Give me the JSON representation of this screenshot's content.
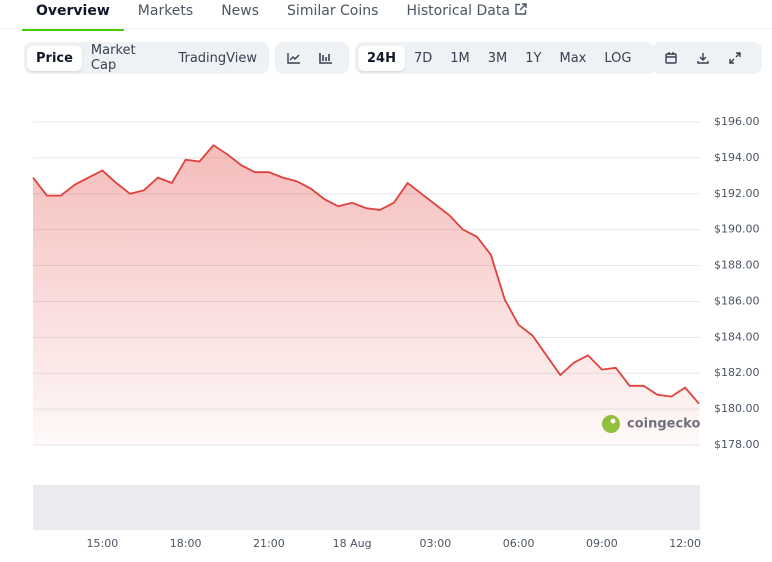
{
  "tabs": [
    "Overview",
    "Markets",
    "News",
    "Similar Coins",
    "Historical Data"
  ],
  "chart_tabs": [
    "Price",
    "Market Cap",
    "TradingView"
  ],
  "ranges": [
    "24H",
    "7D",
    "1M",
    "3M",
    "1Y",
    "Max",
    "LOG"
  ],
  "watermark": "coingecko",
  "chart_data": {
    "type": "line",
    "categories": [
      null,
      null,
      null,
      null,
      null,
      "15:00",
      null,
      null,
      null,
      null,
      null,
      "18:00",
      null,
      null,
      null,
      null,
      null,
      "21:00",
      null,
      null,
      null,
      null,
      null,
      "18 Aug",
      null,
      null,
      null,
      null,
      null,
      "03:00",
      null,
      null,
      null,
      null,
      null,
      "06:00",
      null,
      null,
      null,
      null,
      null,
      "09:00",
      null,
      null,
      null,
      null,
      null,
      "12:00",
      null
    ],
    "values": [
      192.9,
      191.9,
      191.9,
      192.5,
      192.9,
      193.3,
      192.6,
      192.0,
      192.2,
      192.9,
      192.6,
      193.9,
      193.8,
      194.7,
      194.2,
      193.6,
      193.2,
      193.2,
      192.9,
      192.7,
      192.3,
      191.7,
      191.3,
      191.5,
      191.2,
      191.1,
      191.5,
      192.6,
      192.0,
      191.4,
      190.8,
      190.0,
      189.6,
      188.6,
      186.1,
      184.7,
      184.1,
      183.0,
      181.9,
      182.6,
      183.0,
      182.2,
      182.3,
      181.3,
      181.3,
      180.8,
      180.7,
      181.2,
      180.3
    ],
    "color": "#e0413b",
    "ylim": [
      178,
      196
    ],
    "yticks": [
      {
        "value": 178,
        "label": "$178.00"
      },
      {
        "value": 180,
        "label": "$180.00"
      },
      {
        "value": 182,
        "label": "$182.00"
      },
      {
        "value": 184,
        "label": "$184.00"
      },
      {
        "value": 186,
        "label": "$186.00"
      },
      {
        "value": 188,
        "label": "$188.00"
      },
      {
        "value": 190,
        "label": "$190.00"
      },
      {
        "value": 192,
        "label": "$192.00"
      },
      {
        "value": 194,
        "label": "$194.00"
      },
      {
        "value": 196,
        "label": "$196.00"
      }
    ],
    "grid": true
  }
}
